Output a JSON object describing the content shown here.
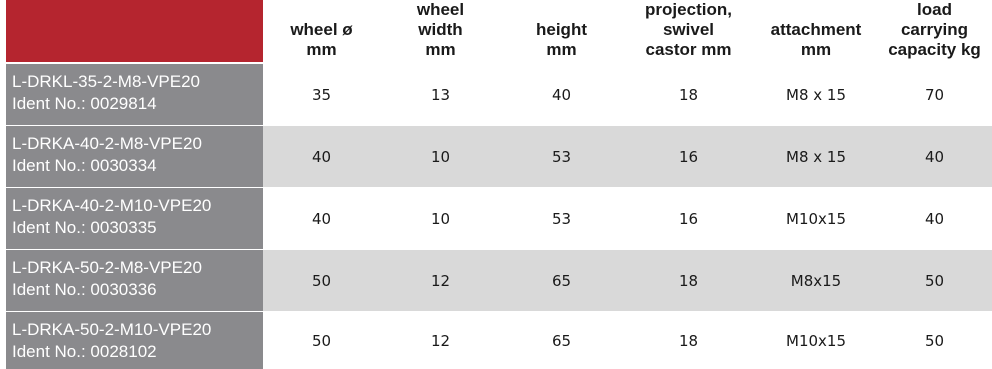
{
  "columns": [
    {
      "lines": [
        "wheel ø",
        "mm"
      ]
    },
    {
      "lines": [
        "wheel",
        "width",
        "mm"
      ]
    },
    {
      "lines": [
        "height",
        "mm"
      ]
    },
    {
      "lines": [
        "projection,",
        "swivel",
        "castor mm"
      ]
    },
    {
      "lines": [
        "attachment",
        "mm"
      ]
    },
    {
      "lines": [
        "load",
        "carrying",
        "capacity kg"
      ]
    }
  ],
  "rows": [
    {
      "name": "L-DRKL-35-2-M8-VPE20",
      "ident": "Ident No.: 0029814",
      "values": [
        "35",
        "13",
        "40",
        "18",
        "M8 x 15",
        "70"
      ]
    },
    {
      "name": "L-DRKA-40-2-M8-VPE20",
      "ident": "Ident No.: 0030334",
      "values": [
        "40",
        "10",
        "53",
        "16",
        "M8 x 15",
        "40"
      ]
    },
    {
      "name": "L-DRKA-40-2-M10-VPE20",
      "ident": "Ident No.: 0030335",
      "values": [
        "40",
        "10",
        "53",
        "16",
        "M10x15",
        "40"
      ]
    },
    {
      "name": "L-DRKA-50-2-M8-VPE20",
      "ident": "Ident No.: 0030336",
      "values": [
        "50",
        "12",
        "65",
        "18",
        "M8x15",
        "50"
      ]
    },
    {
      "name": "L-DRKA-50-2-M10-VPE20",
      "ident": "Ident No.: 0028102",
      "values": [
        "50",
        "12",
        "65",
        "18",
        "M10x15",
        "50"
      ]
    }
  ],
  "colors": {
    "header_corner": "#b5252f",
    "label_bg": "#8a8a8d",
    "row_shade": "#d9d9d9"
  }
}
